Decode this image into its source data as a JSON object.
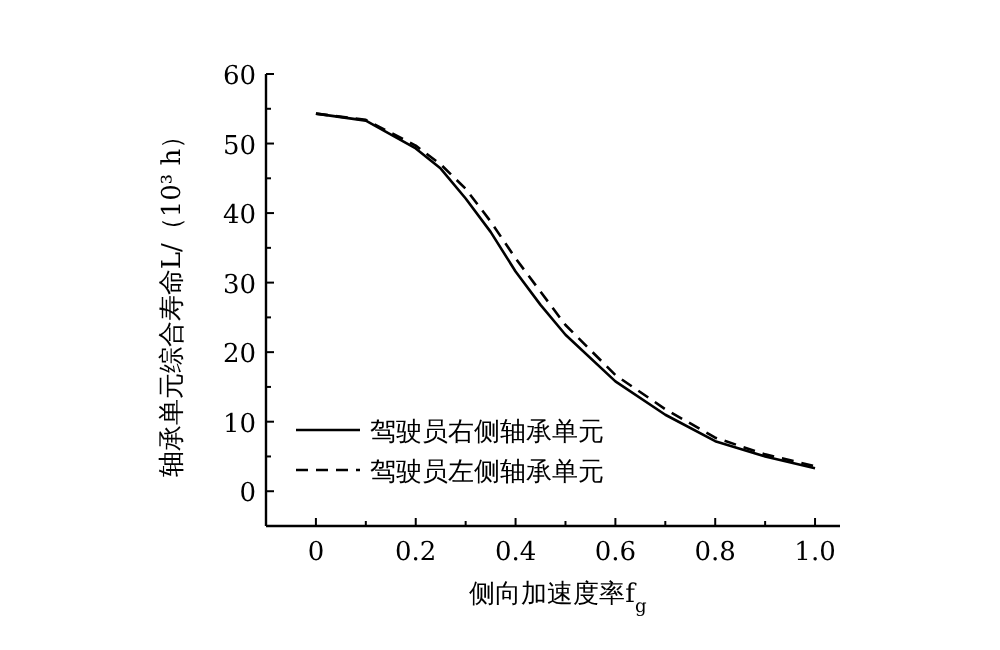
{
  "chart_data": {
    "type": "line",
    "xlabel": "侧向加速度率f$_{g}$",
    "ylabel": "轴承单元综合寿命L/（10³ h）",
    "x": [
      0,
      0.1,
      0.2,
      0.25,
      0.3,
      0.35,
      0.4,
      0.45,
      0.5,
      0.6,
      0.7,
      0.8,
      0.9,
      1.0
    ],
    "series": [
      {
        "name": "驾驶员右侧轴承单元",
        "color": "#000000",
        "line_style": "solid",
        "values": [
          54.3,
          53.3,
          49.3,
          46.4,
          42.1,
          37.3,
          31.6,
          26.8,
          22.5,
          15.8,
          11.0,
          7.2,
          5.0,
          3.3
        ]
      },
      {
        "name": "驾驶员左侧轴承单元",
        "color": "#000000",
        "line_style": "dashed",
        "values": [
          54.3,
          53.4,
          49.7,
          47.0,
          43.5,
          38.8,
          33.5,
          28.7,
          23.9,
          16.7,
          11.8,
          7.7,
          5.3,
          3.6
        ]
      }
    ],
    "xlim": [
      -0.1,
      1.05
    ],
    "ylim": [
      -5,
      60
    ],
    "xticks": [
      0,
      0.2,
      0.4,
      0.6,
      0.8,
      {
        "value": 1,
        "label": "1.0"
      }
    ],
    "yticks": [
      0,
      10,
      20,
      30,
      40,
      50,
      60
    ],
    "grid": false,
    "legend": "bottom left",
    "marker": "none"
  }
}
